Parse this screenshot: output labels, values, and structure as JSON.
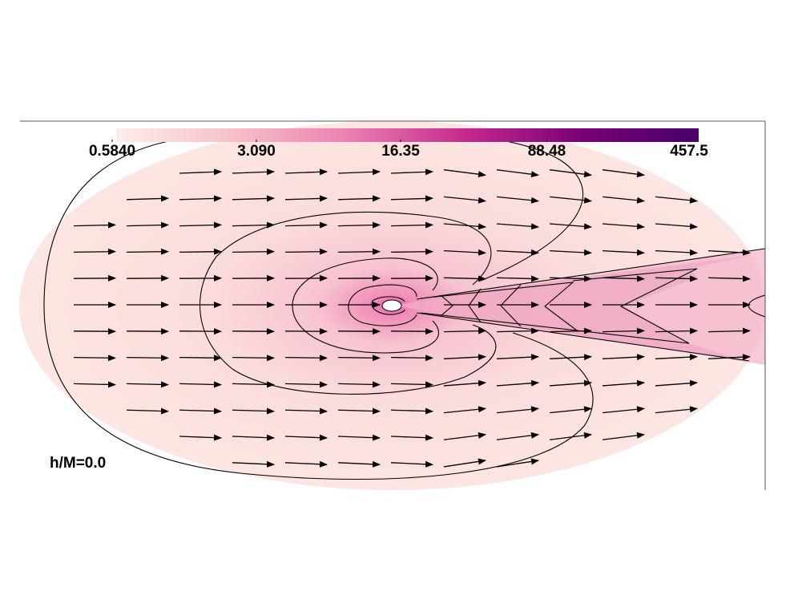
{
  "chart_data": {
    "type": "contour",
    "annotation": "h/M=0.0",
    "colorbar": {
      "scale": "log",
      "lim": [
        0.584,
        457.5
      ],
      "ticks": [
        {
          "value": 0.584,
          "label": "0.5840"
        },
        {
          "value": 3.09,
          "label": "3.090"
        },
        16.35,
        88.48,
        457.5
      ],
      "colors": [
        "#fdeee9",
        "#f7c0c9",
        "#eb7fb0",
        "#c5288f",
        "#7a0177",
        "#49006a"
      ]
    }
  }
}
